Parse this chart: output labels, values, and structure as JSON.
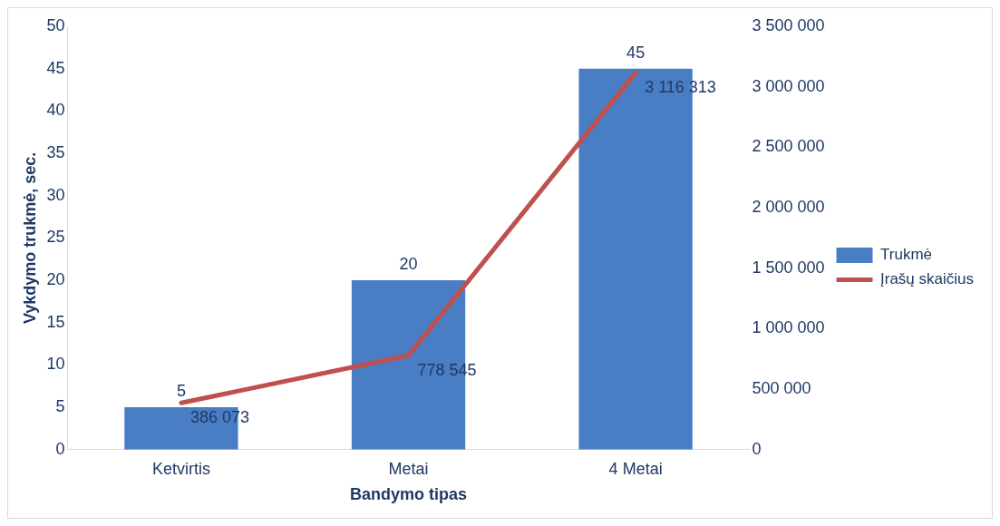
{
  "chart_data": {
    "type": "bar",
    "xlabel": "Bandymo tipas",
    "ylabel": "Vykdymo trukmė, sec.",
    "categories": [
      "Ketvirtis",
      "Metai",
      "4 Metai"
    ],
    "series": [
      {
        "name": "Trukmė",
        "color": "#4a7ec4",
        "values": [
          5,
          20,
          45
        ],
        "value_labels": [
          "5",
          "20",
          "45"
        ]
      },
      {
        "name": "Įrašų skaičius",
        "type": "line",
        "axis": "y2",
        "color": "#c0504d",
        "values": [
          386073,
          778545,
          3116313
        ],
        "value_labels": [
          "386 073",
          "778 545",
          "3 116 313"
        ]
      }
    ],
    "ylim": [
      0,
      50
    ],
    "yticks": [
      0,
      5,
      10,
      15,
      20,
      25,
      30,
      35,
      40,
      45,
      50
    ],
    "y2lim": [
      0,
      3500000
    ],
    "y2ticks": [
      0,
      {
        "value": 500000,
        "label": "500 000"
      },
      {
        "value": 1000000,
        "label": "1 000 000"
      },
      {
        "value": 1500000,
        "label": "1 500 000"
      },
      {
        "value": 2000000,
        "label": "2 000 000"
      },
      {
        "value": 2500000,
        "label": "2 500 000"
      },
      {
        "value": 3000000,
        "label": "3 000 000"
      },
      {
        "value": 3500000,
        "label": "3 500 000"
      }
    ],
    "grid": false,
    "legend": "right",
    "marker": "none"
  }
}
